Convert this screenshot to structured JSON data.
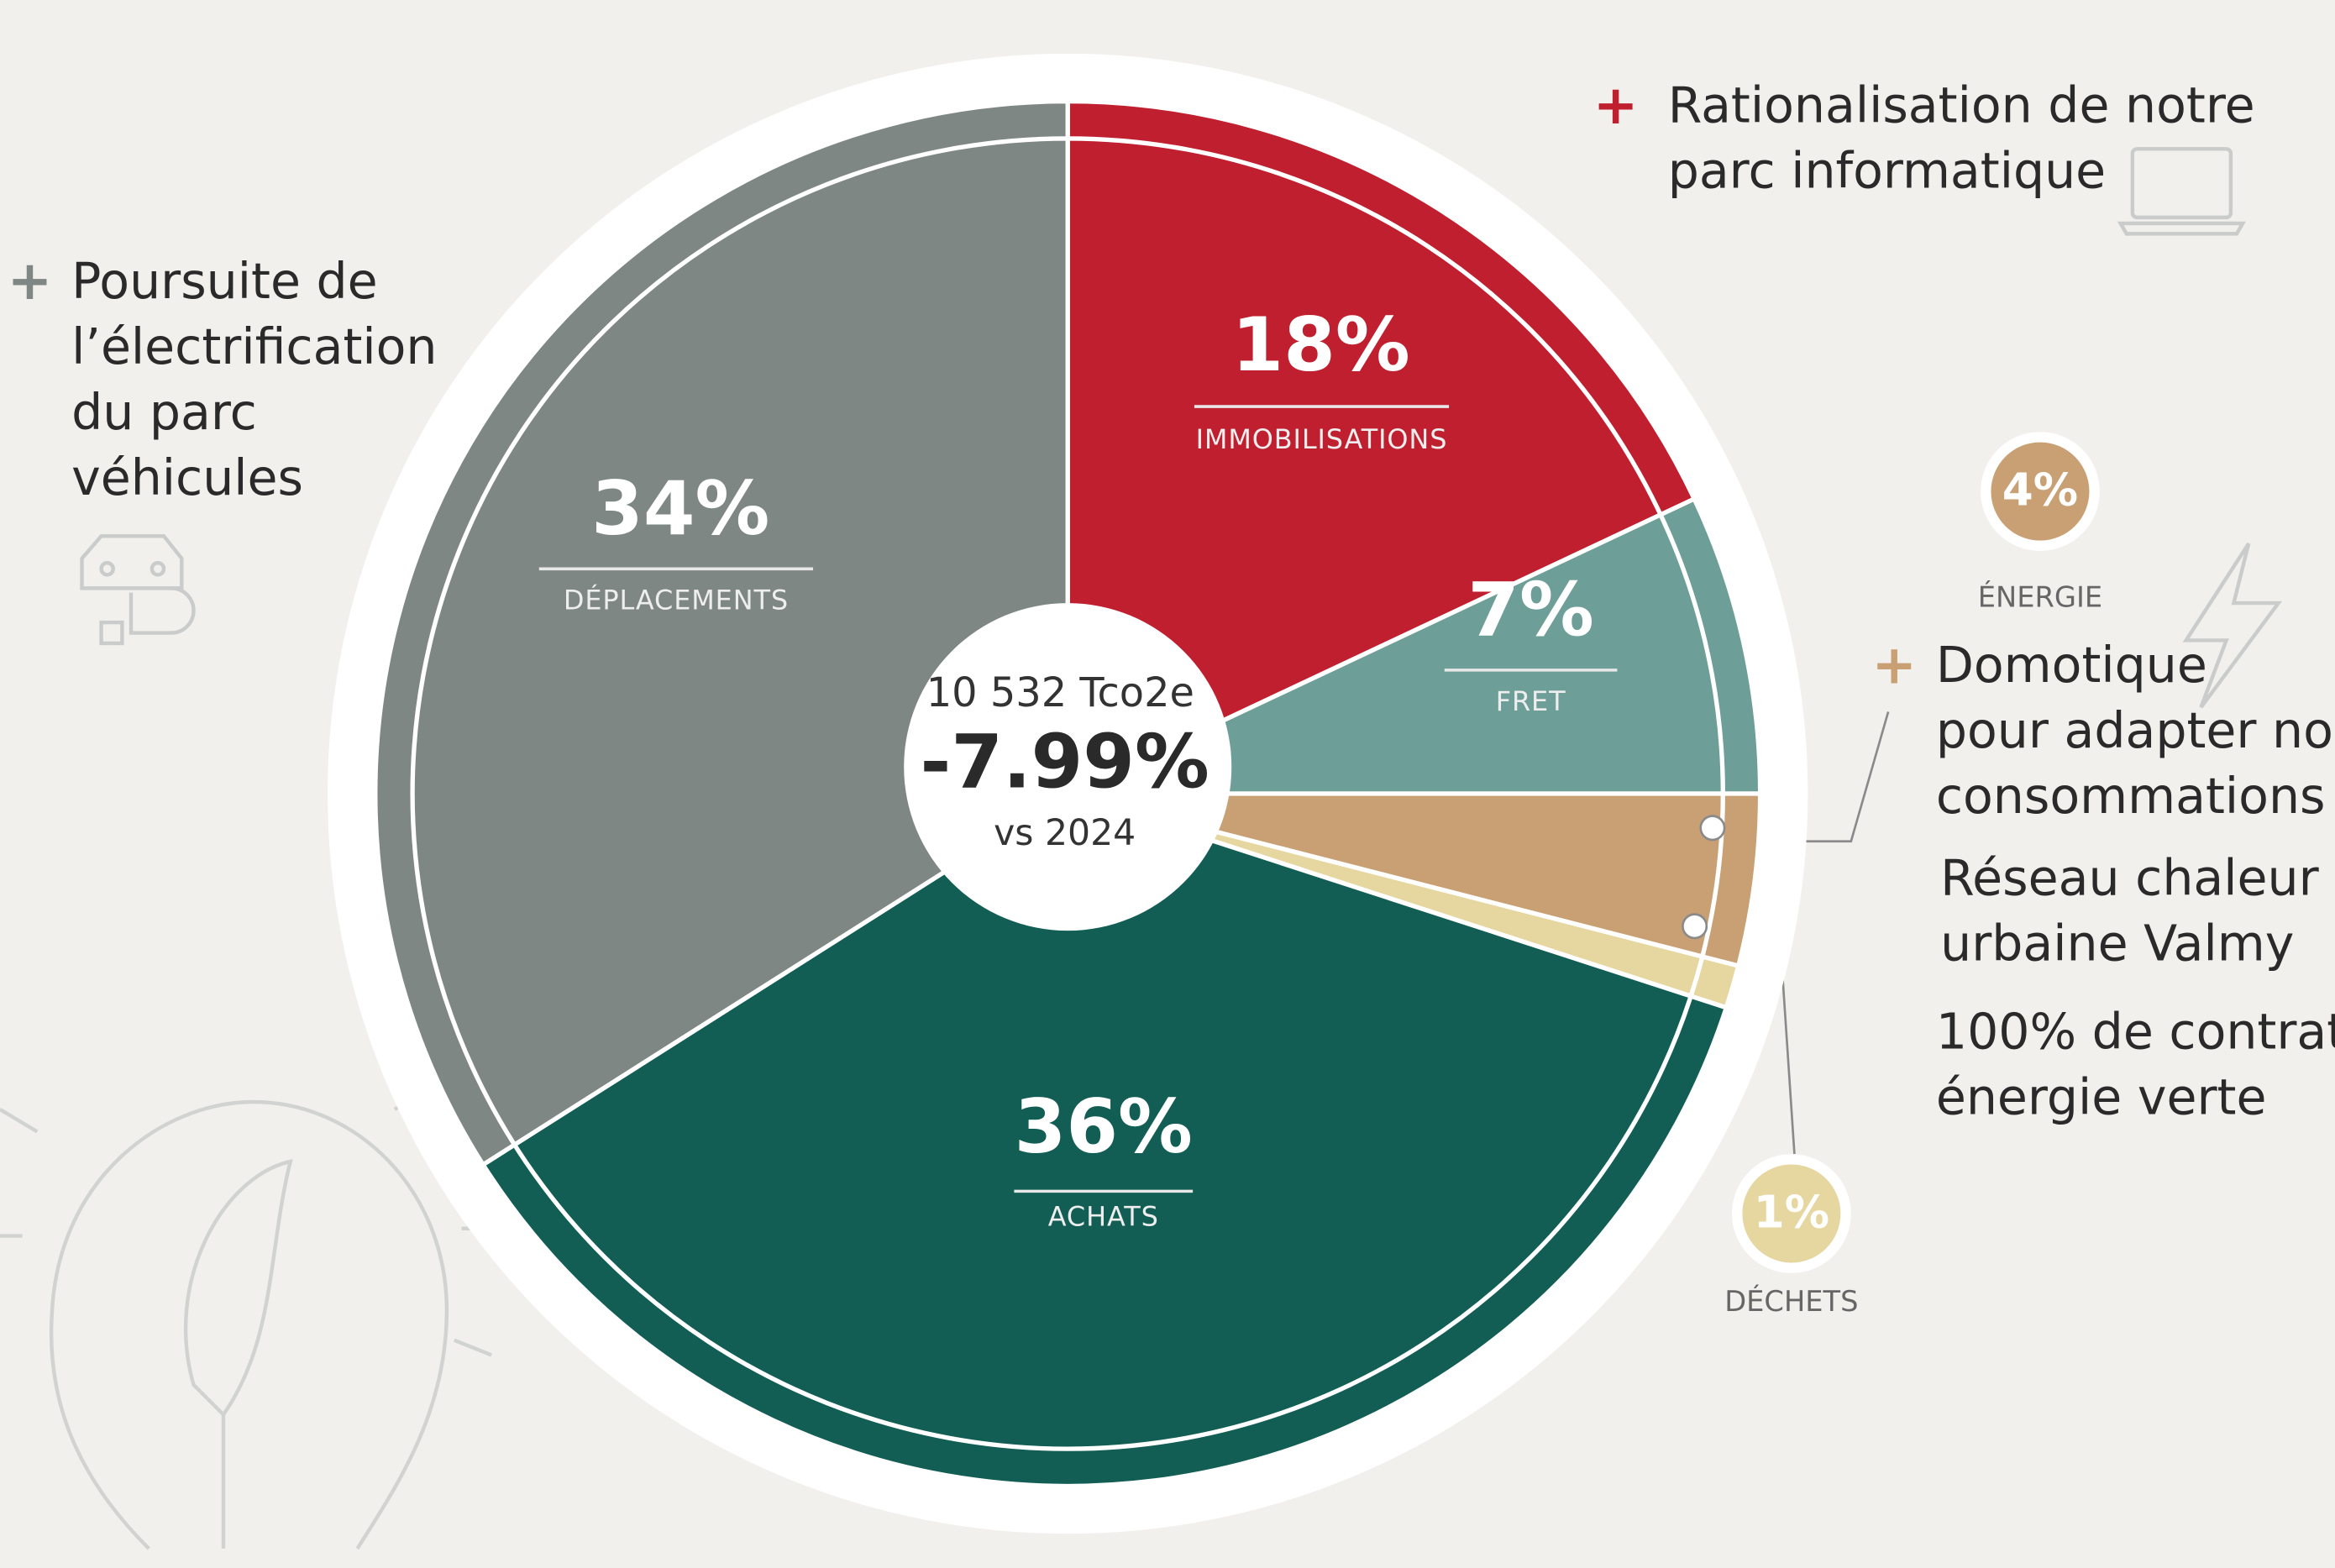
{
  "chart_data": {
    "type": "pie",
    "categories": [
      "IMMOBILISATIONS",
      "FRET",
      "ÉNERGIE",
      "DÉCHETS",
      "ACHATS",
      "DÉPLACEMENTS"
    ],
    "values": [
      18,
      7,
      4,
      1,
      36,
      34
    ],
    "value_labels": [
      "18%",
      "7%",
      "4%",
      "1%",
      "36%",
      "34%"
    ],
    "colors": [
      "#c01f2f",
      "#6e9e98",
      "#c9a074",
      "#e6d69f",
      "#125e55",
      "#7f8785"
    ],
    "center_label": "10 532 Tco2e",
    "center_value": "-7.99%",
    "center_sub": "vs 2024",
    "annotations": [
      {
        "lines": [
          "Rationalisation de notre",
          "parc informatique"
        ]
      },
      {
        "lines": [
          "Poursuite de",
          "l’électrification",
          "du parc",
          "véhicules"
        ]
      },
      {
        "lines": [
          "Domotique",
          "pour adapter nos",
          "consommations"
        ]
      },
      {
        "lines": [
          "Réseau chaleur",
          "urbaine Valmy"
        ]
      },
      {
        "lines": [
          "100% de contrat",
          "énergie verte"
        ]
      }
    ]
  }
}
